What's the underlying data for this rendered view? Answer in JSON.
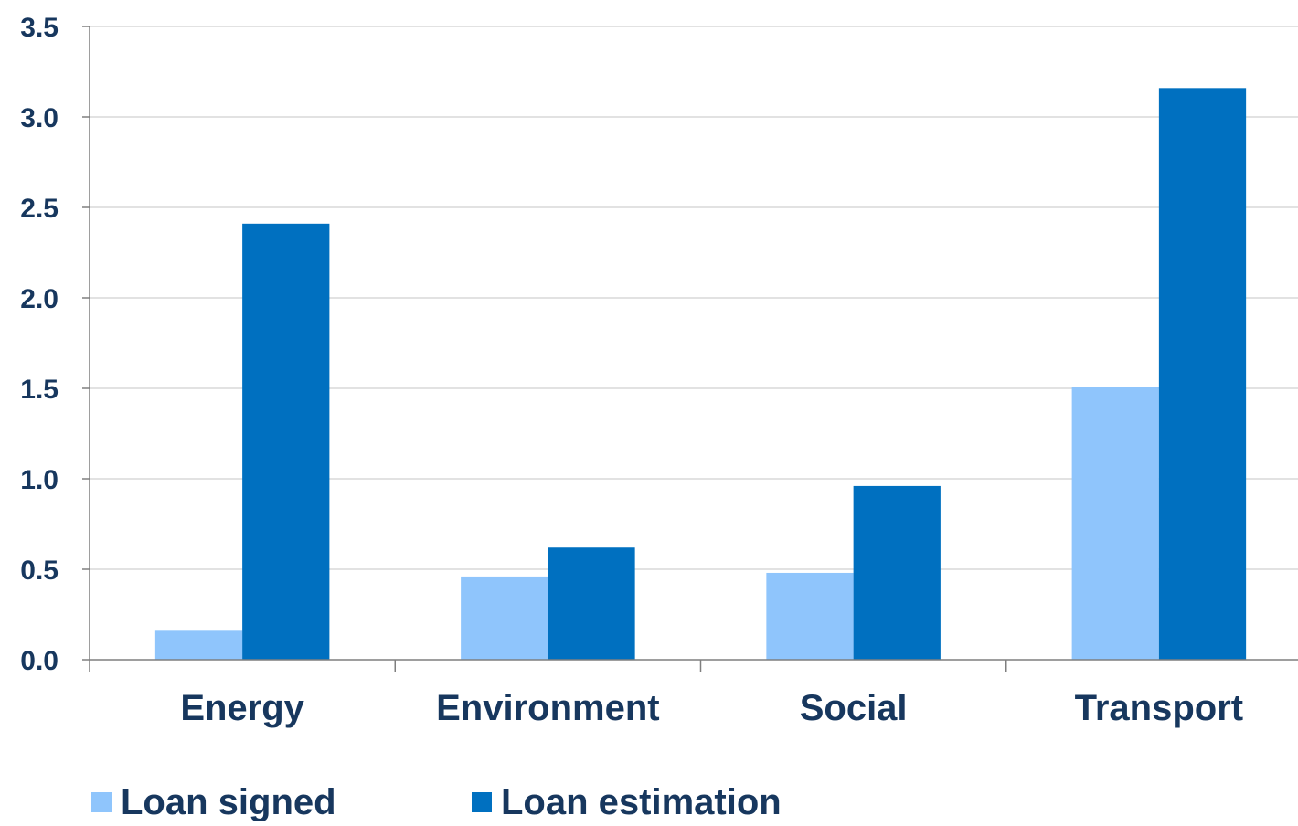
{
  "chart_data": {
    "type": "bar",
    "title": "",
    "xlabel": "",
    "ylabel": "",
    "categories": [
      "Energy",
      "Environment",
      "Social",
      "Transport"
    ],
    "series": [
      {
        "name": "Loan signed",
        "color": "#8fc5fc",
        "values": [
          0.16,
          0.46,
          0.48,
          1.51
        ]
      },
      {
        "name": "Loan estimation",
        "color": "#0070c0",
        "values": [
          2.41,
          0.62,
          0.96,
          3.16
        ]
      }
    ],
    "ylim": [
      0,
      3.5
    ],
    "yticks": [
      "0.0",
      "0.5",
      "1.0",
      "1.5",
      "2.0",
      "2.5",
      "3.0",
      "3.5"
    ],
    "ytick_values": [
      0,
      0.5,
      1.0,
      1.5,
      2.0,
      2.5,
      3.0,
      3.5
    ],
    "grid": true,
    "legend_position": "bottom-left",
    "colors": {
      "text": "#17375e",
      "grid": "#d9d9d9",
      "axis": "#7f7f7f"
    }
  }
}
